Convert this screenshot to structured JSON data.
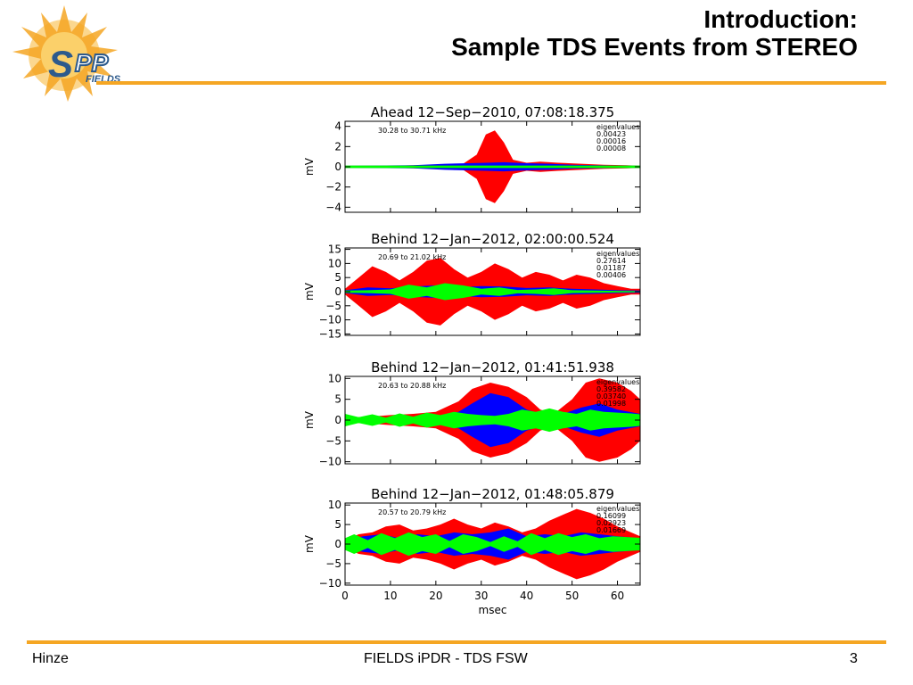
{
  "slide": {
    "title_line1": "Introduction:",
    "title_line2": "Sample TDS Events from STEREO",
    "logo_text": "SPP",
    "logo_sub": "FIELDS",
    "footer_left": "Hinze",
    "footer_center": "FIELDS iPDR - TDS FSW",
    "page_number": "3"
  },
  "colors": {
    "accent": "#f5a623",
    "series1": "#ff0000",
    "series2": "#0000ff",
    "series3": "#00ff00"
  },
  "chart_data": [
    {
      "type": "area",
      "title": "Ahead 12−Sep−2010, 07:08:18.375",
      "freq_range": "30.28 to 30.71 kHz",
      "eigen_label": "eigenvalues",
      "eigenvalues": [
        "0.00423",
        "0.00016",
        "0.00008"
      ],
      "ylabel": "mV",
      "xlabel": "",
      "ylim": [
        -4.5,
        4.5
      ],
      "yticks": [
        4,
        2,
        0,
        -2,
        -4
      ],
      "ytick_labels": [
        "4",
        "2",
        "0",
        "−2",
        "−4"
      ],
      "xlim": [
        0,
        65
      ],
      "series": [
        {
          "color": "#ff0000",
          "x": [
            0,
            10,
            20,
            26,
            29,
            31,
            33,
            35,
            37,
            40,
            43,
            47,
            52,
            57,
            62,
            65
          ],
          "y": [
            0.1,
            0.1,
            0.2,
            0.3,
            1.2,
            3.2,
            3.6,
            2.4,
            0.7,
            0.4,
            0.5,
            0.4,
            0.3,
            0.2,
            0.15,
            0.1
          ]
        },
        {
          "color": "#0000ff",
          "x": [
            0,
            15,
            22,
            27,
            31,
            35,
            40,
            45,
            50,
            55,
            60,
            65
          ],
          "y": [
            0.1,
            0.15,
            0.3,
            0.35,
            0.4,
            0.45,
            0.35,
            0.3,
            0.2,
            0.15,
            0.12,
            0.1
          ]
        },
        {
          "color": "#00ff00",
          "x": [
            0,
            20,
            30,
            40,
            50,
            65
          ],
          "y": [
            0.12,
            0.12,
            0.12,
            0.12,
            0.12,
            0.12
          ]
        }
      ]
    },
    {
      "type": "area",
      "title": "Behind 12−Jan−2012, 02:00:00.524",
      "freq_range": "20.69 to 21.02 kHz",
      "eigen_label": "eigenvalues",
      "eigenvalues": [
        "0.27614",
        "0.01187",
        "0.00406"
      ],
      "ylabel": "mV",
      "xlabel": "",
      "ylim": [
        -15.5,
        15.5
      ],
      "yticks": [
        15,
        10,
        5,
        0,
        -5,
        -10,
        -15
      ],
      "ytick_labels": [
        "15",
        "10",
        "5",
        "0",
        "−5",
        "−10",
        "−15"
      ],
      "xlim": [
        0,
        65
      ],
      "series": [
        {
          "color": "#ff0000",
          "x": [
            0,
            3,
            6,
            9,
            12,
            15,
            18,
            21,
            24,
            27,
            30,
            33,
            36,
            39,
            42,
            45,
            48,
            51,
            54,
            57,
            60,
            63,
            65
          ],
          "y": [
            1,
            5,
            9,
            7,
            4,
            7,
            11,
            12,
            8,
            5,
            7,
            10,
            8,
            5,
            7,
            6,
            4,
            6,
            5,
            3,
            2,
            1,
            1
          ]
        },
        {
          "color": "#0000ff",
          "x": [
            0,
            5,
            10,
            15,
            20,
            25,
            30,
            35,
            40,
            45,
            50,
            55,
            60,
            65
          ],
          "y": [
            0.5,
            1.5,
            1.2,
            1.8,
            2.2,
            1.5,
            2.0,
            1.8,
            1.3,
            1.5,
            1.0,
            0.8,
            0.5,
            0.4
          ]
        },
        {
          "color": "#00ff00",
          "x": [
            0,
            5,
            10,
            14,
            18,
            22,
            26,
            30,
            34,
            38,
            42,
            46,
            50,
            55,
            60,
            65
          ],
          "y": [
            0.4,
            0.5,
            0.8,
            2.5,
            1.5,
            3.0,
            2.2,
            1.0,
            1.5,
            0.6,
            0.8,
            1.2,
            0.5,
            0.4,
            0.3,
            0.2
          ]
        }
      ]
    },
    {
      "type": "area",
      "title": "Behind 12−Jan−2012, 01:41:51.938",
      "freq_range": "20.63 to 20.88 kHz",
      "eigen_label": "eigenvalues",
      "eigenvalues": [
        "0.39582",
        "0.03740",
        "0.01998"
      ],
      "ylabel": "mV",
      "xlabel": "",
      "ylim": [
        -10.5,
        10.5
      ],
      "yticks": [
        10,
        5,
        0,
        -5,
        -10
      ],
      "ytick_labels": [
        "10",
        "5",
        "0",
        "−5",
        "−10"
      ],
      "xlim": [
        0,
        65
      ],
      "series": [
        {
          "color": "#ff0000",
          "x": [
            0,
            5,
            10,
            15,
            20,
            25,
            28,
            32,
            36,
            40,
            43,
            46,
            50,
            53,
            56,
            60,
            63,
            65
          ],
          "y": [
            0.6,
            0.8,
            1.2,
            1.5,
            2.0,
            4.5,
            7.5,
            9.0,
            8.0,
            5.5,
            2.5,
            1.5,
            5.0,
            9.0,
            10.0,
            9.0,
            7.0,
            5.0
          ]
        },
        {
          "color": "#0000ff",
          "x": [
            0,
            10,
            20,
            25,
            28,
            32,
            36,
            40,
            44,
            48,
            52,
            56,
            60,
            65
          ],
          "y": [
            0.4,
            0.5,
            0.8,
            2.0,
            4.0,
            6.5,
            5.5,
            2.5,
            1.2,
            1.5,
            3.0,
            4.0,
            2.5,
            1.5
          ]
        },
        {
          "color": "#00ff00",
          "x": [
            0,
            3,
            6,
            9,
            12,
            15,
            18,
            21,
            24,
            27,
            30,
            33,
            36,
            39,
            42,
            45,
            48,
            51,
            54,
            57,
            60,
            63,
            65
          ],
          "y": [
            1.5,
            0.7,
            1.4,
            0.6,
            1.6,
            0.8,
            1.8,
            1.2,
            2.0,
            1.5,
            1.2,
            1.0,
            1.5,
            2.5,
            2.0,
            2.8,
            2.0,
            1.5,
            2.5,
            2.0,
            1.8,
            1.6,
            1.4
          ]
        }
      ]
    },
    {
      "type": "area",
      "title": "Behind 12−Jan−2012, 01:48:05.879",
      "freq_range": "20.57 to 20.79 kHz",
      "eigen_label": "eigenvalues",
      "eigenvalues": [
        "0.16099",
        "0.02923",
        "0.01669"
      ],
      "ylabel": "mV",
      "xlabel": "msec",
      "ylim": [
        -10.5,
        10.5
      ],
      "yticks": [
        10,
        5,
        0,
        -5,
        -10
      ],
      "ytick_labels": [
        "10",
        "5",
        "0",
        "−5",
        "−10"
      ],
      "xlim": [
        0,
        65
      ],
      "xticks": [
        0,
        10,
        20,
        30,
        40,
        50,
        60
      ],
      "xtick_labels": [
        "0",
        "10",
        "20",
        "30",
        "40",
        "50",
        "60"
      ],
      "series": [
        {
          "color": "#ff0000",
          "x": [
            0,
            3,
            6,
            9,
            12,
            15,
            18,
            21,
            24,
            27,
            30,
            33,
            36,
            39,
            42,
            45,
            48,
            51,
            54,
            57,
            60,
            63,
            65
          ],
          "y": [
            1.0,
            2.5,
            3.0,
            4.5,
            5.0,
            3.5,
            4.0,
            5.0,
            6.5,
            5.0,
            4.0,
            5.5,
            4.5,
            3.0,
            4.0,
            6.0,
            7.5,
            9.0,
            8.0,
            6.5,
            4.5,
            3.0,
            2.0
          ]
        },
        {
          "color": "#0000ff",
          "x": [
            0,
            4,
            8,
            12,
            16,
            20,
            24,
            28,
            32,
            36,
            40,
            44,
            48,
            52,
            56,
            60,
            65
          ],
          "y": [
            1.0,
            2.0,
            2.5,
            1.5,
            2.5,
            2.0,
            3.0,
            2.5,
            3.0,
            4.0,
            2.0,
            2.5,
            2.0,
            3.0,
            2.5,
            2.0,
            1.5
          ]
        },
        {
          "color": "#00ff00",
          "x": [
            0,
            2,
            5,
            8,
            11,
            14,
            17,
            20,
            23,
            26,
            29,
            32,
            35,
            38,
            41,
            44,
            47,
            50,
            53,
            56,
            59,
            62,
            65
          ],
          "y": [
            1.5,
            2.5,
            1.0,
            2.8,
            1.5,
            3.0,
            1.8,
            2.5,
            0.8,
            2.5,
            1.8,
            0.5,
            2.0,
            0.7,
            2.8,
            1.5,
            2.8,
            1.8,
            2.5,
            1.5,
            2.0,
            1.8,
            1.6
          ]
        }
      ]
    }
  ]
}
